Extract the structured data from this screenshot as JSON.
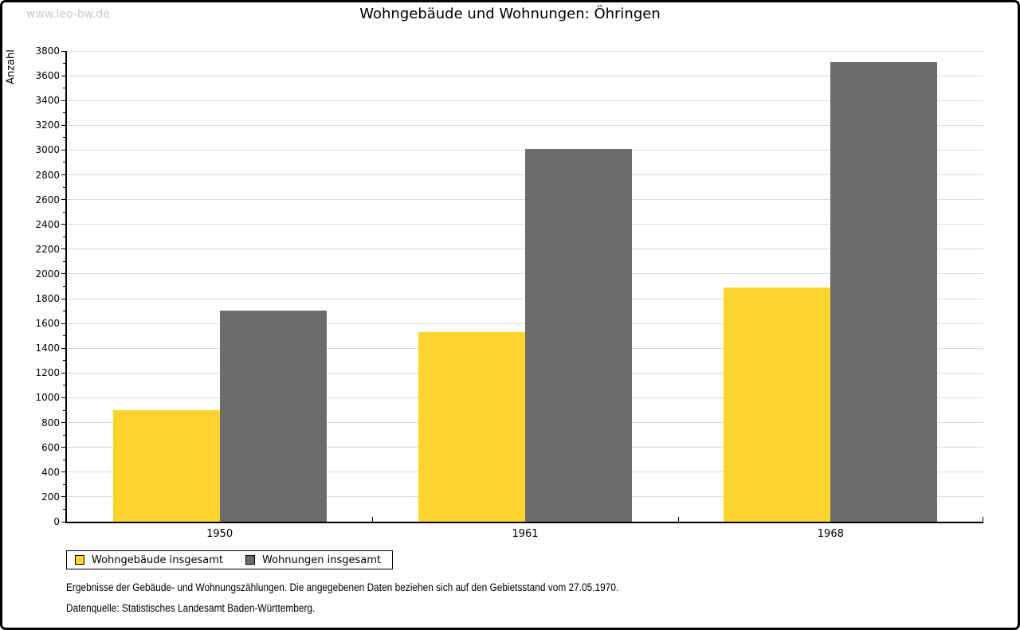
{
  "watermark": "www.leo-bw.de",
  "chart_data": {
    "type": "bar",
    "title": "Wohngebäude und Wohnungen: Öhringen",
    "ylabel": "Anzahl",
    "xlabel": "",
    "categories": [
      "1950",
      "1961",
      "1968"
    ],
    "series": [
      {
        "name": "Wohngebäude insgesamt",
        "color": "#FCD42D",
        "values": [
          900,
          1530,
          1890
        ]
      },
      {
        "name": "Wohnungen insgesamt",
        "color": "#6C6C6C",
        "values": [
          1705,
          3010,
          3710
        ]
      }
    ],
    "ylim": [
      0,
      3800
    ],
    "ytick_major_step": 200,
    "ytick_minor_step": 100,
    "grid": true,
    "legend_position": "bottom-left"
  },
  "colors": {
    "bar_yellow": "#FCD42D",
    "bar_gray": "#6C6C6C",
    "gridline": "#dadada",
    "watermark": "#c9c9c9",
    "axis": "#000000"
  },
  "footer": {
    "line1": "Ergebnisse der Gebäude- und Wohnungszählungen. Die angegebenen Daten beziehen sich auf den Gebietsstand vom 27.05.1970.",
    "line2": "Datenquelle: Statistisches Landesamt Baden-Württemberg."
  }
}
